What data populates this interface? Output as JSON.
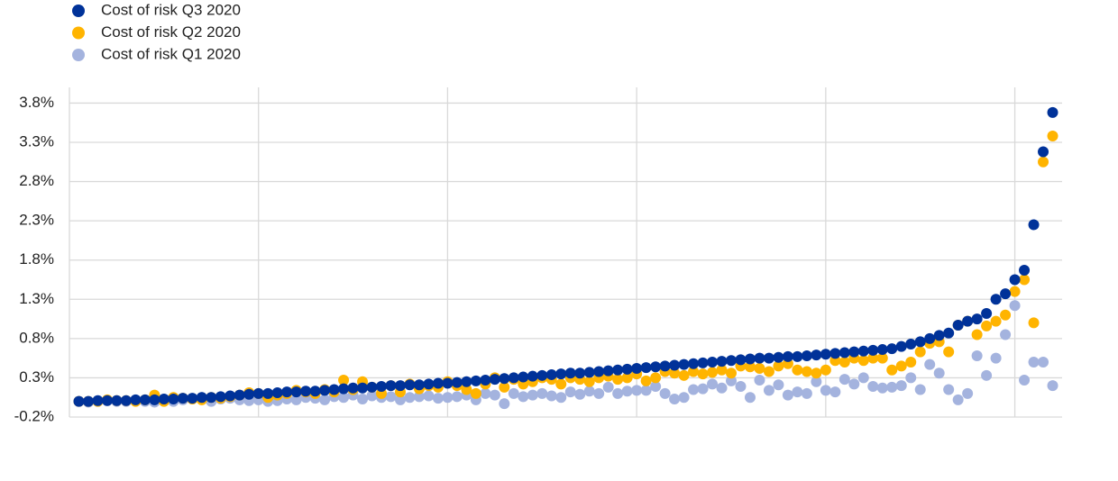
{
  "chart_data": {
    "type": "scatter",
    "x": [
      1,
      2,
      3,
      4,
      5,
      6,
      7,
      8,
      9,
      10,
      11,
      12,
      13,
      14,
      15,
      16,
      17,
      18,
      19,
      20,
      21,
      22,
      23,
      24,
      25,
      26,
      27,
      28,
      29,
      30,
      31,
      32,
      33,
      34,
      35,
      36,
      37,
      38,
      39,
      40,
      41,
      42,
      43,
      44,
      45,
      46,
      47,
      48,
      49,
      50,
      51,
      52,
      53,
      54,
      55,
      56,
      57,
      58,
      59,
      60,
      61,
      62,
      63,
      64,
      65,
      66,
      67,
      68,
      69,
      70,
      71,
      72,
      73,
      74,
      75,
      76,
      77,
      78,
      79,
      80,
      81,
      82,
      83,
      84,
      85,
      86,
      87,
      88,
      89,
      90,
      91,
      92,
      93,
      94,
      95,
      96,
      97,
      98,
      99,
      100,
      101,
      102,
      103,
      104
    ],
    "series": [
      {
        "name": "Cost of risk Q3 2020",
        "color": "#003299",
        "values": [
          0.0,
          0.0,
          0.01,
          0.01,
          0.01,
          0.01,
          0.02,
          0.02,
          0.02,
          0.03,
          0.03,
          0.04,
          0.04,
          0.05,
          0.05,
          0.06,
          0.07,
          0.08,
          0.09,
          0.1,
          0.1,
          0.11,
          0.12,
          0.12,
          0.13,
          0.13,
          0.14,
          0.15,
          0.16,
          0.17,
          0.17,
          0.18,
          0.19,
          0.2,
          0.2,
          0.21,
          0.21,
          0.22,
          0.23,
          0.23,
          0.24,
          0.25,
          0.26,
          0.27,
          0.28,
          0.29,
          0.3,
          0.31,
          0.32,
          0.33,
          0.34,
          0.35,
          0.36,
          0.36,
          0.37,
          0.38,
          0.39,
          0.4,
          0.41,
          0.42,
          0.43,
          0.44,
          0.45,
          0.46,
          0.47,
          0.48,
          0.49,
          0.5,
          0.51,
          0.52,
          0.53,
          0.54,
          0.55,
          0.55,
          0.56,
          0.57,
          0.57,
          0.58,
          0.59,
          0.6,
          0.61,
          0.62,
          0.63,
          0.64,
          0.65,
          0.66,
          0.67,
          0.7,
          0.73,
          0.76,
          0.8,
          0.84,
          0.87,
          0.97,
          1.02,
          1.05,
          1.12,
          1.3,
          1.37,
          1.55,
          1.67,
          2.25,
          3.18,
          3.68
        ]
      },
      {
        "name": "Cost of risk Q2 2020",
        "color": "#ffb400",
        "values": [
          0.0,
          0.0,
          0.0,
          0.02,
          0.01,
          0.01,
          0.0,
          0.02,
          0.08,
          0.0,
          0.05,
          0.04,
          0.03,
          0.02,
          0.05,
          0.04,
          0.06,
          0.08,
          0.11,
          0.1,
          0.05,
          0.08,
          0.1,
          0.14,
          0.12,
          0.1,
          0.15,
          0.12,
          0.27,
          0.15,
          0.25,
          0.18,
          0.1,
          0.2,
          0.12,
          0.22,
          0.16,
          0.2,
          0.18,
          0.25,
          0.2,
          0.15,
          0.1,
          0.22,
          0.3,
          0.18,
          0.28,
          0.22,
          0.25,
          0.3,
          0.28,
          0.22,
          0.3,
          0.28,
          0.25,
          0.3,
          0.32,
          0.28,
          0.3,
          0.35,
          0.26,
          0.3,
          0.38,
          0.36,
          0.33,
          0.38,
          0.35,
          0.37,
          0.4,
          0.36,
          0.45,
          0.44,
          0.42,
          0.38,
          0.45,
          0.48,
          0.4,
          0.38,
          0.36,
          0.4,
          0.52,
          0.5,
          0.55,
          0.52,
          0.55,
          0.55,
          0.4,
          0.45,
          0.5,
          0.63,
          0.74,
          0.76,
          0.63,
          0.97,
          1.02,
          0.85,
          0.96,
          1.02,
          1.1,
          1.4,
          1.55,
          1.0,
          3.05,
          3.38
        ]
      },
      {
        "name": "Cost of risk Q1 2020",
        "color": "#a4b3de",
        "values": [
          0.0,
          -0.01,
          0.0,
          0.01,
          0.0,
          0.0,
          0.01,
          0.0,
          -0.01,
          0.02,
          0.0,
          0.02,
          0.03,
          0.05,
          0.0,
          0.03,
          0.04,
          0.02,
          0.01,
          0.02,
          0.0,
          0.01,
          0.03,
          0.02,
          0.05,
          0.04,
          0.02,
          0.06,
          0.05,
          0.08,
          0.03,
          0.07,
          0.05,
          0.06,
          0.02,
          0.05,
          0.06,
          0.07,
          0.04,
          0.05,
          0.06,
          0.08,
          0.02,
          0.1,
          0.08,
          -0.03,
          0.1,
          0.06,
          0.08,
          0.1,
          0.07,
          0.05,
          0.12,
          0.09,
          0.13,
          0.1,
          0.18,
          0.1,
          0.13,
          0.14,
          0.14,
          0.19,
          0.1,
          0.03,
          0.05,
          0.15,
          0.16,
          0.22,
          0.17,
          0.26,
          0.19,
          0.05,
          0.27,
          0.14,
          0.21,
          0.08,
          0.12,
          0.1,
          0.25,
          0.14,
          0.12,
          0.28,
          0.22,
          0.3,
          0.19,
          0.17,
          0.18,
          0.2,
          0.3,
          0.15,
          0.47,
          0.36,
          0.15,
          0.02,
          0.1,
          0.58,
          0.33,
          0.55,
          0.85,
          1.22,
          0.27,
          0.5,
          0.5,
          0.2
        ]
      }
    ],
    "xlim": [
      0,
      105
    ],
    "xticks": [
      0,
      20,
      40,
      60,
      80,
      100
    ],
    "ylim": [
      -0.2,
      4.0
    ],
    "yticks": [
      {
        "value": -0.2,
        "label": "-0.2%"
      },
      {
        "value": 0.3,
        "label": "0.3%"
      },
      {
        "value": 0.8,
        "label": "0.8%"
      },
      {
        "value": 1.3,
        "label": "1.3%"
      },
      {
        "value": 1.8,
        "label": "1.8%"
      },
      {
        "value": 2.3,
        "label": "2.3%"
      },
      {
        "value": 2.8,
        "label": "2.8%"
      },
      {
        "value": 3.3,
        "label": "3.3%"
      },
      {
        "value": 3.8,
        "label": "3.8%"
      }
    ],
    "grid": true
  }
}
